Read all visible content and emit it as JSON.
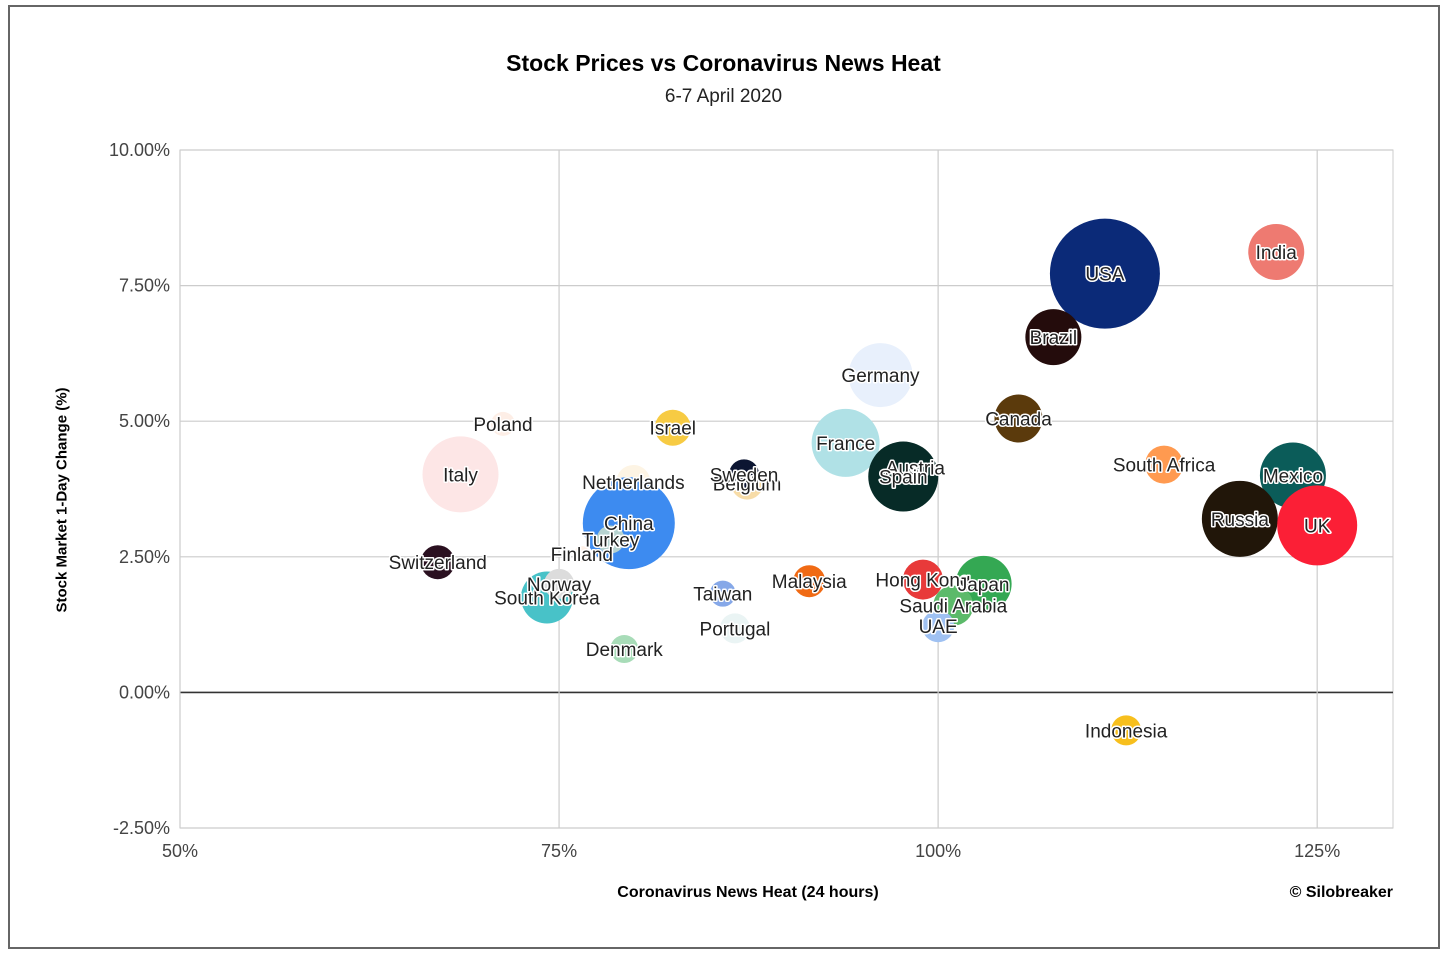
{
  "chart_data": {
    "type": "scatter",
    "title": "Stock Prices vs Coronavirus News Heat",
    "subtitle": "6-7 April 2020",
    "xlabel": "Coronavirus News Heat (24 hours)",
    "ylabel": "Stock Market 1-Day Change (%)",
    "credit": "© Silobreaker",
    "xlim": [
      50,
      130
    ],
    "ylim": [
      -2.5,
      10
    ],
    "x_ticks": [
      "50%",
      "75%",
      "100%",
      "125%"
    ],
    "y_ticks": [
      "-2.50%",
      "0.00%",
      "2.50%",
      "5.00%",
      "7.50%",
      "10.00%"
    ],
    "grid": true,
    "points": [
      {
        "name": "USA",
        "x": 111.0,
        "y": 7.72,
        "size": 55,
        "color": "#0b2a78"
      },
      {
        "name": "India",
        "x": 122.3,
        "y": 8.12,
        "size": 28,
        "color": "#ee7a71"
      },
      {
        "name": "Brazil",
        "x": 107.6,
        "y": 6.55,
        "size": 28,
        "color": "#240c0c"
      },
      {
        "name": "Germany",
        "x": 96.2,
        "y": 5.85,
        "size": 32,
        "color": "#e8f0fc"
      },
      {
        "name": "Canada",
        "x": 105.3,
        "y": 5.05,
        "size": 24,
        "color": "#5b3a0c"
      },
      {
        "name": "France",
        "x": 93.9,
        "y": 4.6,
        "size": 34,
        "color": "#b0e1e6"
      },
      {
        "name": "Austria",
        "x": 98.5,
        "y": 4.15,
        "size": 16,
        "color": "#e4e4e4"
      },
      {
        "name": "Spain",
        "x": 97.7,
        "y": 3.98,
        "size": 35,
        "color": "#072b27"
      },
      {
        "name": "South Africa",
        "x": 114.9,
        "y": 4.2,
        "size": 19,
        "color": "#ff9a50"
      },
      {
        "name": "Mexico",
        "x": 123.4,
        "y": 4.0,
        "size": 33,
        "color": "#0b5c59"
      },
      {
        "name": "Russia",
        "x": 119.9,
        "y": 3.2,
        "size": 38,
        "color": "#211609"
      },
      {
        "name": "UK",
        "x": 125.0,
        "y": 3.08,
        "size": 40,
        "color": "#fb1f36"
      },
      {
        "name": "Poland",
        "x": 71.3,
        "y": 4.95,
        "size": 12,
        "color": "#fdeee6"
      },
      {
        "name": "Israel",
        "x": 82.5,
        "y": 4.88,
        "size": 18,
        "color": "#f7cb43"
      },
      {
        "name": "Italy",
        "x": 68.5,
        "y": 4.02,
        "size": 38,
        "color": "#fde6e6"
      },
      {
        "name": "Netherlands",
        "x": 79.9,
        "y": 3.88,
        "size": 17,
        "color": "#fdf4e4"
      },
      {
        "name": "Belgium",
        "x": 87.4,
        "y": 3.85,
        "size": 16,
        "color": "#f7dca8"
      },
      {
        "name": "Sweden",
        "x": 87.2,
        "y": 4.02,
        "size": 15,
        "color": "#0c1532"
      },
      {
        "name": "China",
        "x": 79.6,
        "y": 3.12,
        "size": 46,
        "color": "#3d8bf0"
      },
      {
        "name": "Turkey",
        "x": 78.4,
        "y": 2.82,
        "size": 14,
        "color": "#b6d2d0"
      },
      {
        "name": "Finland",
        "x": 76.5,
        "y": 2.55,
        "size": 8,
        "color": "#fff0e6"
      },
      {
        "name": "Switzerland",
        "x": 67.0,
        "y": 2.4,
        "size": 17,
        "color": "#2a1020"
      },
      {
        "name": "South Korea",
        "x": 74.2,
        "y": 1.75,
        "size": 26,
        "color": "#48c2c8"
      },
      {
        "name": "Norway",
        "x": 75.0,
        "y": 2.0,
        "size": 15,
        "color": "#dcdcdc"
      },
      {
        "name": "Taiwan",
        "x": 85.8,
        "y": 1.82,
        "size": 13,
        "color": "#86a8e8"
      },
      {
        "name": "Portugal",
        "x": 86.6,
        "y": 1.18,
        "size": 15,
        "color": "#eaf4f4"
      },
      {
        "name": "Denmark",
        "x": 79.3,
        "y": 0.8,
        "size": 14,
        "color": "#a8dcb8"
      },
      {
        "name": "Malaysia",
        "x": 91.5,
        "y": 2.05,
        "size": 16,
        "color": "#f06a14"
      },
      {
        "name": "Hong Kong",
        "x": 99.0,
        "y": 2.08,
        "size": 20,
        "color": "#e83a3a"
      },
      {
        "name": "Japan",
        "x": 103.0,
        "y": 2.0,
        "size": 28,
        "color": "#34a853"
      },
      {
        "name": "Saudi Arabia",
        "x": 101.0,
        "y": 1.6,
        "size": 20,
        "color": "#5cba6a"
      },
      {
        "name": "UAE",
        "x": 100.0,
        "y": 1.22,
        "size": 16,
        "color": "#9fc1f2"
      },
      {
        "name": "Indonesia",
        "x": 112.4,
        "y": -0.7,
        "size": 15,
        "color": "#f7bf1d"
      }
    ]
  }
}
